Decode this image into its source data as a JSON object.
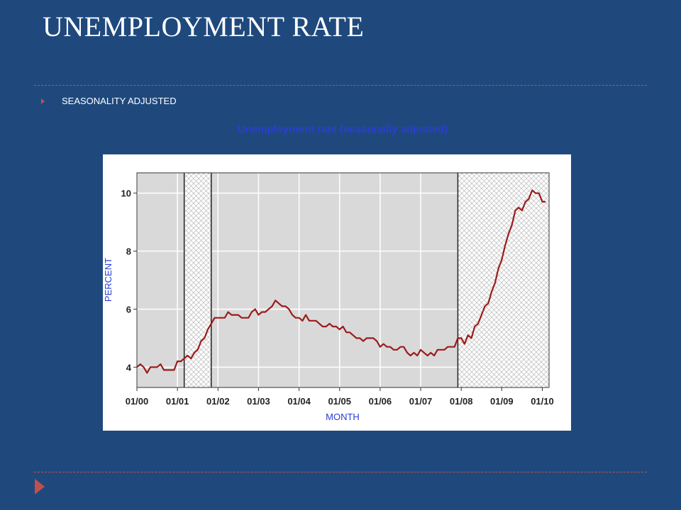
{
  "slide": {
    "title": "UNEMPLOYMENT RATE",
    "bullet": "SEASONALITY ADJUSTED",
    "accent_color": "#c0504d",
    "background_color": "#1f497d"
  },
  "chart_data": {
    "type": "line",
    "title": "Unemployment rate (seasonally adjusted)",
    "xlabel": "MONTH",
    "ylabel": "PERCENT",
    "xlim": [
      "2000-01",
      "2010-03"
    ],
    "ylim": [
      3.3,
      10.7
    ],
    "x_ticks": [
      "01/00",
      "01/01",
      "01/02",
      "01/03",
      "01/04",
      "01/05",
      "01/06",
      "01/07",
      "01/08",
      "01/09",
      "01/10"
    ],
    "y_ticks": [
      4,
      6,
      8,
      10
    ],
    "grid": true,
    "recessions": [
      {
        "start": "2001-03",
        "end": "2001-11"
      },
      {
        "start": "2007-12",
        "end": "2010-03"
      }
    ],
    "line_color": "#9b1b1b",
    "series": [
      {
        "start": "2000-01",
        "frequency": "monthly",
        "values": [
          4.0,
          4.1,
          4.0,
          3.8,
          4.0,
          4.0,
          4.0,
          4.1,
          3.9,
          3.9,
          3.9,
          3.9,
          4.2,
          4.2,
          4.3,
          4.4,
          4.3,
          4.5,
          4.6,
          4.9,
          5.0,
          5.3,
          5.5,
          5.7,
          5.7,
          5.7,
          5.7,
          5.9,
          5.8,
          5.8,
          5.8,
          5.7,
          5.7,
          5.7,
          5.9,
          6.0,
          5.8,
          5.9,
          5.9,
          6.0,
          6.1,
          6.3,
          6.2,
          6.1,
          6.1,
          6.0,
          5.8,
          5.7,
          5.7,
          5.6,
          5.8,
          5.6,
          5.6,
          5.6,
          5.5,
          5.4,
          5.4,
          5.5,
          5.4,
          5.4,
          5.3,
          5.4,
          5.2,
          5.2,
          5.1,
          5.0,
          5.0,
          4.9,
          5.0,
          5.0,
          5.0,
          4.9,
          4.7,
          4.8,
          4.7,
          4.7,
          4.6,
          4.6,
          4.7,
          4.7,
          4.5,
          4.4,
          4.5,
          4.4,
          4.6,
          4.5,
          4.4,
          4.5,
          4.4,
          4.6,
          4.6,
          4.6,
          4.7,
          4.7,
          4.7,
          5.0,
          5.0,
          4.8,
          5.1,
          5.0,
          5.4,
          5.5,
          5.8,
          6.1,
          6.2,
          6.6,
          6.9,
          7.4,
          7.7,
          8.2,
          8.6,
          8.9,
          9.4,
          9.5,
          9.4,
          9.7,
          9.8,
          10.1,
          10.0,
          10.0,
          9.7,
          9.7
        ]
      }
    ]
  }
}
